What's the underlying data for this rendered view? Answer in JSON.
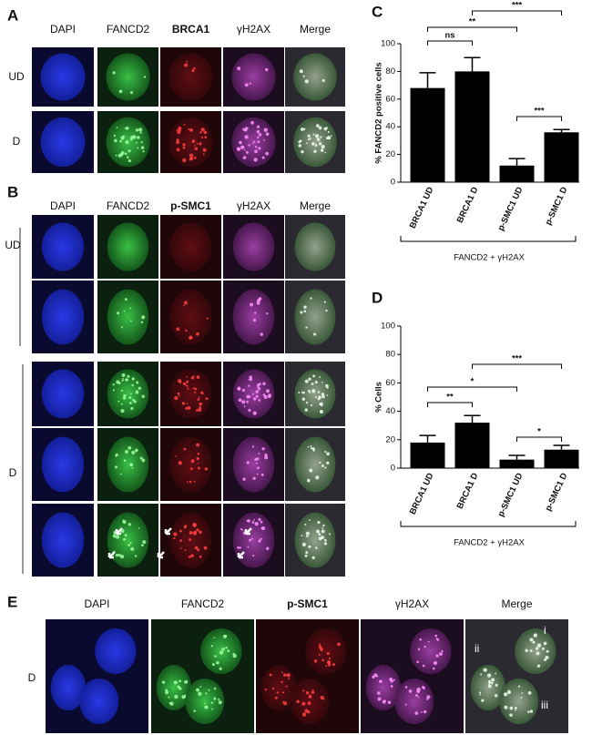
{
  "panel_a": {
    "letter": "A",
    "columns": [
      "DAPI",
      "FANCD2",
      "BRCA1",
      "γH2AX",
      "Merge"
    ],
    "rows": [
      "UD",
      "D"
    ]
  },
  "panel_b": {
    "letter": "B",
    "columns": [
      "DAPI",
      "FANCD2",
      "p-SMC1",
      "γH2AX",
      "Merge"
    ],
    "rows": [
      "UD",
      "D"
    ]
  },
  "panel_e": {
    "letter": "E",
    "columns": [
      "DAPI",
      "FANCD2",
      "p-SMC1",
      "γH2AX",
      "Merge"
    ],
    "rows": [
      "D"
    ],
    "merge_labels": [
      "i",
      "ii",
      "iii"
    ]
  },
  "chart_data": [
    {
      "type": "bar",
      "panel": "C",
      "ylabel": "% FANCD2 positive cells",
      "xlabel": "FANCD2 + γH2AX",
      "categories": [
        "BRCA1 UD",
        "BRCA1 D",
        "p-SMC1 UD",
        "p-SMC1 D"
      ],
      "values": [
        68,
        80,
        12,
        36
      ],
      "errors": [
        11,
        10,
        5,
        2
      ],
      "color": "#000000",
      "ylim": [
        0,
        100
      ],
      "yticks": [
        0,
        20,
        40,
        60,
        80,
        100
      ],
      "significance": [
        "ns",
        "**",
        "***",
        "***"
      ]
    },
    {
      "type": "bar",
      "panel": "D",
      "ylabel": "% Cells",
      "xlabel": "FANCD2 + γH2AX",
      "categories": [
        "BRCA1 UD",
        "BRCA1 D",
        "p-SMC1 UD",
        "p-SMC1 D"
      ],
      "values": [
        18,
        32,
        6,
        13
      ],
      "errors": [
        5,
        5,
        3,
        3
      ],
      "color": "#000000",
      "ylim": [
        0,
        100
      ],
      "yticks": [
        0,
        20,
        40,
        60,
        80,
        100
      ],
      "significance": [
        "**",
        "*",
        "***",
        "*"
      ]
    }
  ]
}
